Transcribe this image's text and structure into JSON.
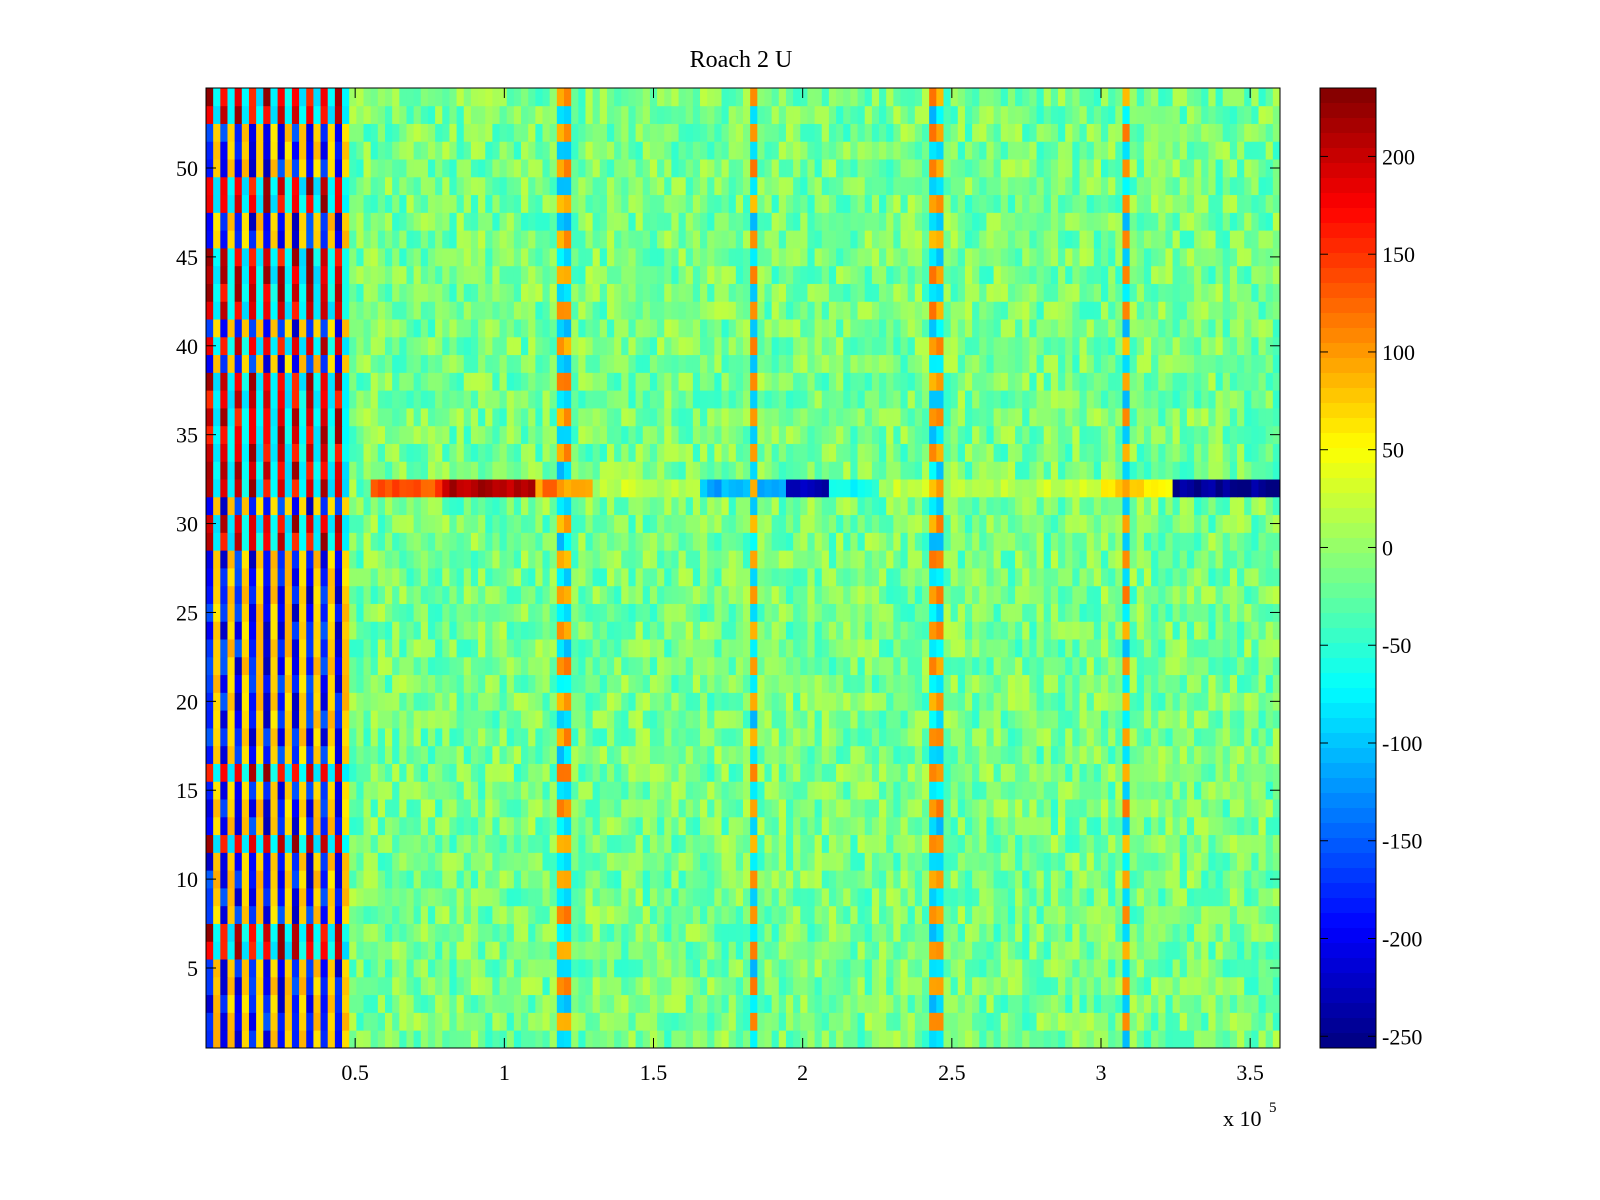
{
  "chart_data": {
    "type": "heatmap",
    "title": "Roach 2 U",
    "xlabel": "",
    "ylabel": "",
    "x_multiplier_label": {
      "base": "x 10",
      "exponent": "5"
    },
    "xlim": [
      0,
      3.6
    ],
    "ylim": [
      0.5,
      54.5
    ],
    "x_ticks": [
      0.5,
      1,
      1.5,
      2,
      2.5,
      3,
      3.5
    ],
    "x_tick_labels": [
      "0.5",
      "1",
      "1.5",
      "2",
      "2.5",
      "3",
      "3.5"
    ],
    "y_ticks": [
      5,
      10,
      15,
      20,
      25,
      30,
      35,
      40,
      45,
      50
    ],
    "y_tick_labels": [
      "5",
      "10",
      "15",
      "20",
      "25",
      "30",
      "35",
      "40",
      "45",
      "50"
    ],
    "rows": 54,
    "colormap": "jet",
    "clim": [
      -256,
      235
    ],
    "colorbar_ticks": [
      200,
      150,
      100,
      50,
      0,
      -50,
      -100,
      -150,
      -200,
      -250
    ],
    "colorbar_tick_labels": [
      "200",
      "150",
      "100",
      "50",
      "0",
      "-50",
      "-100",
      "-150",
      "-200",
      "-250"
    ],
    "features": {
      "background_level": -15,
      "left_block_x_range": [
        0,
        0.47
      ],
      "row_32_segments": [
        {
          "x": [
            0.55,
            0.8
          ],
          "value": 140
        },
        {
          "x": [
            0.8,
            1.1
          ],
          "value": 215
        },
        {
          "x": [
            1.1,
            1.3
          ],
          "value": 110
        },
        {
          "x": [
            1.3,
            1.65
          ],
          "value": 20
        },
        {
          "x": [
            1.65,
            1.95
          ],
          "value": -110
        },
        {
          "x": [
            1.95,
            2.1
          ],
          "value": -230
        },
        {
          "x": [
            2.1,
            2.25
          ],
          "value": -70
        },
        {
          "x": [
            2.25,
            3.0
          ],
          "value": 20
        },
        {
          "x": [
            3.0,
            3.25
          ],
          "value": 60
        },
        {
          "x": [
            3.25,
            3.6
          ],
          "value": -250
        }
      ],
      "vertical_stripes_x": [
        1.2,
        1.83,
        2.45,
        3.08
      ]
    }
  }
}
